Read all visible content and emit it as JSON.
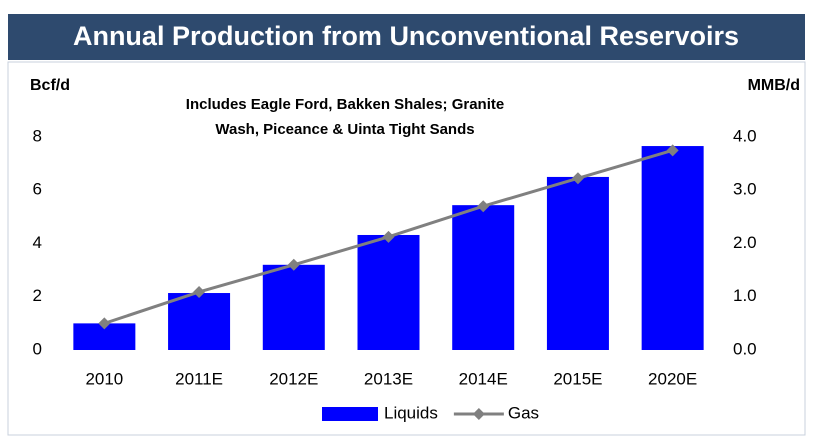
{
  "chart_data": {
    "type": "combo",
    "title": "Annual Production from Unconventional Reservoirs",
    "annotation": [
      "Includes Eagle Ford, Bakken Shales; Granite",
      "Wash, Piceance & Uinta Tight Sands"
    ],
    "y_label": "Bcf/d",
    "y2_label": "MMB/d",
    "categories": [
      "2010",
      "2011E",
      "2012E",
      "2013E",
      "2014E",
      "2015E",
      "2020E"
    ],
    "series": [
      {
        "name": "Liquids",
        "type": "bar",
        "axis": "y2",
        "color": "#0000ff",
        "values": [
          0.5,
          1.07,
          1.6,
          2.16,
          2.72,
          3.25,
          3.83
        ]
      },
      {
        "name": "Gas",
        "type": "line",
        "color": "#808080",
        "values": [
          1.0,
          2.18,
          3.2,
          4.25,
          5.4,
          6.45,
          7.5
        ]
      }
    ],
    "ylim": [
      0,
      8
    ],
    "yticks": [
      0,
      2,
      4,
      6,
      8
    ],
    "y2lim": [
      0,
      4
    ],
    "y2ticks": [
      {
        "value": 0,
        "label": "0.0"
      },
      {
        "value": 1,
        "label": "1.0"
      },
      {
        "value": 2,
        "label": "2.0"
      },
      {
        "value": 3,
        "label": "3.0"
      },
      {
        "value": 4,
        "label": "4.0"
      }
    ],
    "legend": "bottom"
  }
}
